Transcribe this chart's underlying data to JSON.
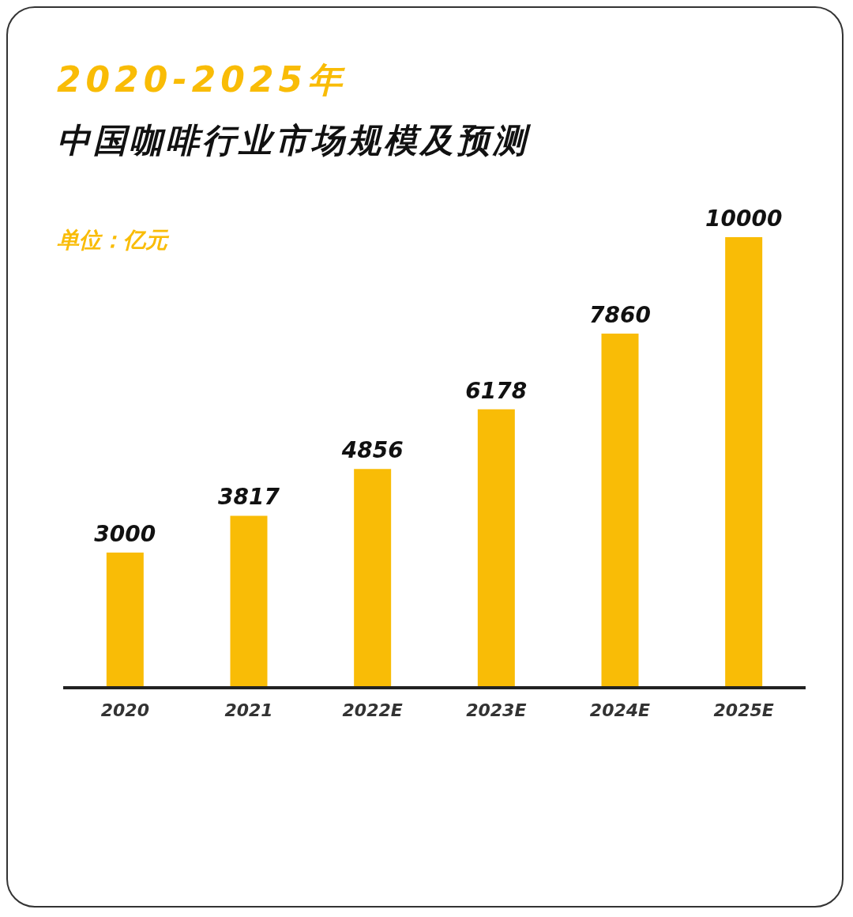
{
  "chart_data": {
    "type": "bar",
    "title": "2020-2025年",
    "subtitle": "中国咖啡行业市场规模及预测",
    "annotations": [
      "单位：亿元"
    ],
    "categories": [
      "2020",
      "2021",
      "2022E",
      "2023E",
      "2024E",
      "2025E"
    ],
    "values": [
      3000,
      3817,
      4856,
      6178,
      7860,
      10000
    ],
    "color": "#f9bc06",
    "data_labels": true
  }
}
